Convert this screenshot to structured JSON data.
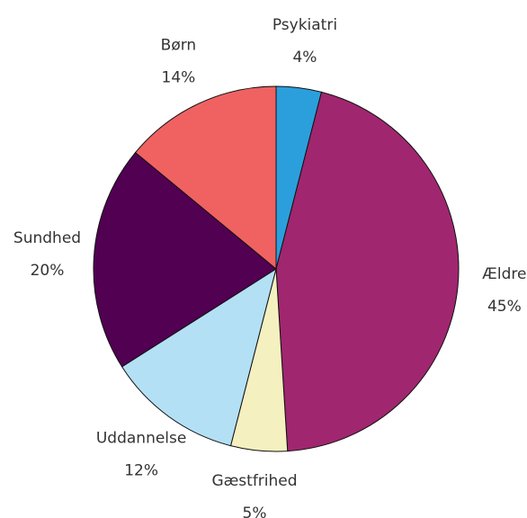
{
  "chart_data": {
    "type": "pie",
    "categories": [
      "Psykiatri",
      "Ældre",
      "Gæstfrihed",
      "Uddannelse",
      "Sundhed",
      "Børn"
    ],
    "values": [
      4,
      45,
      5,
      12,
      20,
      14
    ],
    "value_labels": [
      "4%",
      "45%",
      "5%",
      "12%",
      "20%",
      "14%"
    ],
    "colors": [
      "#2b9fdc",
      "#a0266f",
      "#f5f0c0",
      "#b3e0f5",
      "#520052",
      "#f06262"
    ]
  }
}
